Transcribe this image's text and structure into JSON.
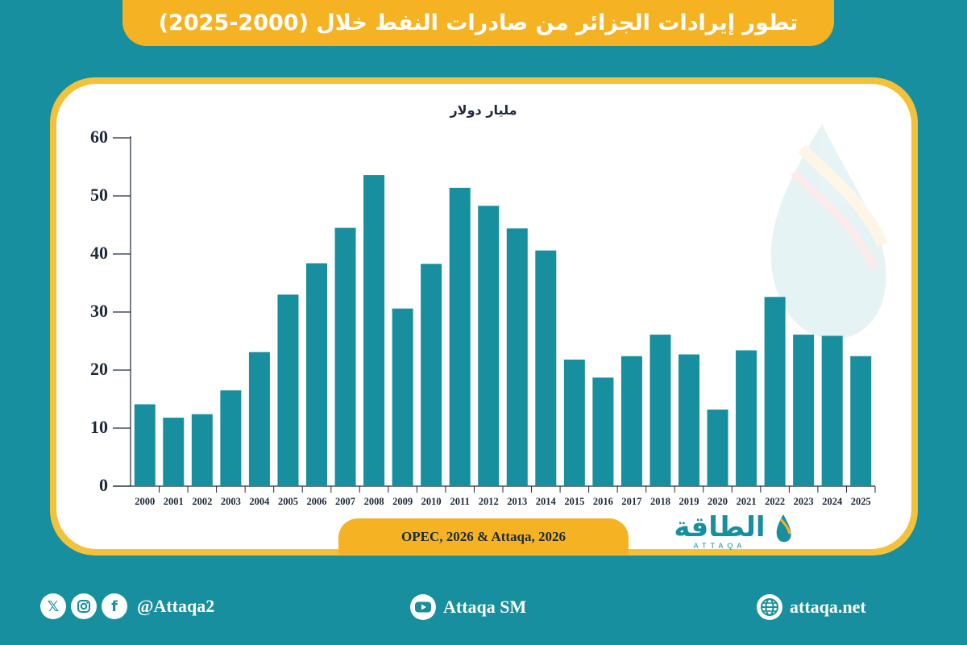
{
  "title": "تطور إيرادات الجزائر من صادرات النفط خلال (2000-2025)",
  "source": "OPEC, 2026 & Attaqa, 2026",
  "brand": {
    "name": "الطاقة",
    "latin": "ATTAQA"
  },
  "footer": {
    "social_handle": "@Attaqa2",
    "youtube": "Attaqa SM",
    "website": "attaqa.net"
  },
  "colors": {
    "background": "#178f9e",
    "bar": "#178f9e",
    "accent": "#f5b324",
    "card": "#ffffff"
  },
  "chart_data": {
    "type": "bar",
    "ylabel": "مليار دولار",
    "ylim": [
      0,
      60
    ],
    "yticks": [
      0,
      10,
      20,
      30,
      40,
      50,
      60
    ],
    "grid": false,
    "categories": [
      "2000",
      "2001",
      "2002",
      "2003",
      "2004",
      "2005",
      "2006",
      "2007",
      "2008",
      "2009",
      "2010",
      "2011",
      "2012",
      "2013",
      "2014",
      "2015",
      "2016",
      "2017",
      "2018",
      "2019",
      "2020",
      "2021",
      "2022",
      "2023",
      "2024",
      "2025"
    ],
    "values": [
      14.1,
      11.8,
      12.4,
      16.5,
      23.1,
      33.0,
      38.4,
      44.5,
      53.6,
      30.6,
      38.3,
      51.4,
      48.3,
      44.4,
      40.6,
      21.8,
      18.7,
      22.4,
      26.1,
      22.7,
      13.2,
      23.4,
      32.6,
      26.1,
      25.9,
      22.4
    ]
  }
}
